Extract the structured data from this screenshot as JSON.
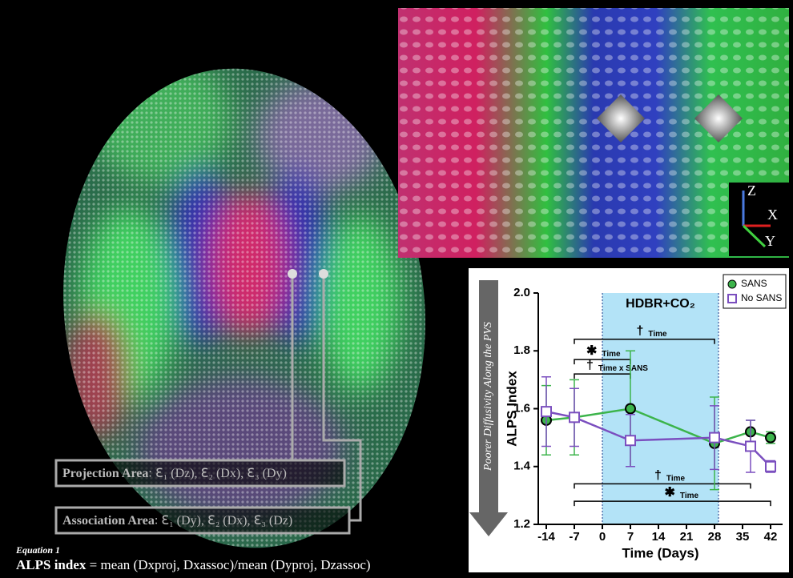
{
  "projection_label": {
    "name": "Projection Area",
    "terms": "ℇ₁ (Dz), ℇ₂ (Dx), ℇ₃ (Dy)"
  },
  "association_label": {
    "name": "Association Area",
    "terms": "ℇ₁ (Dy), ℇ₂ (Dx), ℇ₃ (Dz)"
  },
  "axes_widget": {
    "z": "Z",
    "x": "X",
    "y": "Y"
  },
  "equation": {
    "caption": "Equation 1",
    "name": "ALPS index",
    "formula": "= mean (Dxproj, Dxassoc)/mean (Dyproj, Dzassoc)"
  },
  "chart_data": {
    "type": "line",
    "arrow_label": "Poorer Diffusivity Along the PVS",
    "x_label": "Time (Days)",
    "y_label": "ALPS Index",
    "x": [
      -14,
      -7,
      7,
      28,
      37,
      42
    ],
    "series": [
      {
        "name": "SANS",
        "color": "#3cb44b",
        "marker": "circle",
        "values": [
          1.56,
          1.57,
          1.6,
          1.48,
          1.52,
          1.5
        ],
        "errors": [
          0.12,
          0.13,
          0.2,
          0.16,
          0.04,
          0.02
        ]
      },
      {
        "name": "No SANS",
        "color": "#7b4fbf",
        "marker": "square",
        "values": [
          1.59,
          1.57,
          1.49,
          1.5,
          1.47,
          1.4
        ],
        "errors": [
          0.12,
          0.1,
          0.09,
          0.11,
          0.09,
          0.02
        ]
      }
    ],
    "xlim": [
      -16,
      45
    ],
    "xticks": [
      -14,
      -7,
      0,
      7,
      14,
      21,
      28,
      35,
      42
    ],
    "ylim": [
      1.2,
      2.0
    ],
    "yticks": [
      1.2,
      1.4,
      1.6,
      1.8,
      {
        "value": 2.0,
        "label": "2.0"
      }
    ],
    "shaded_region": {
      "x": [
        0,
        29
      ],
      "label": "HDBR+CO₂",
      "color": "#b3e3f7"
    },
    "brackets": [
      {
        "symbol": "†",
        "label": "Time",
        "x": [
          -7,
          28
        ],
        "y": 1.84
      },
      {
        "symbol": "✱",
        "label": "Time",
        "x": [
          -7,
          7
        ],
        "y": 1.77
      },
      {
        "symbol": "†",
        "label": "Time x SANS",
        "x": [
          -7,
          7
        ],
        "y": 1.72
      },
      {
        "symbol": "†",
        "label": "Time",
        "x": [
          -7,
          37
        ],
        "y": 1.34
      },
      {
        "symbol": "✱",
        "label": "Time",
        "x": [
          -7,
          42
        ],
        "y": 1.28
      }
    ],
    "legend": "upper right"
  }
}
